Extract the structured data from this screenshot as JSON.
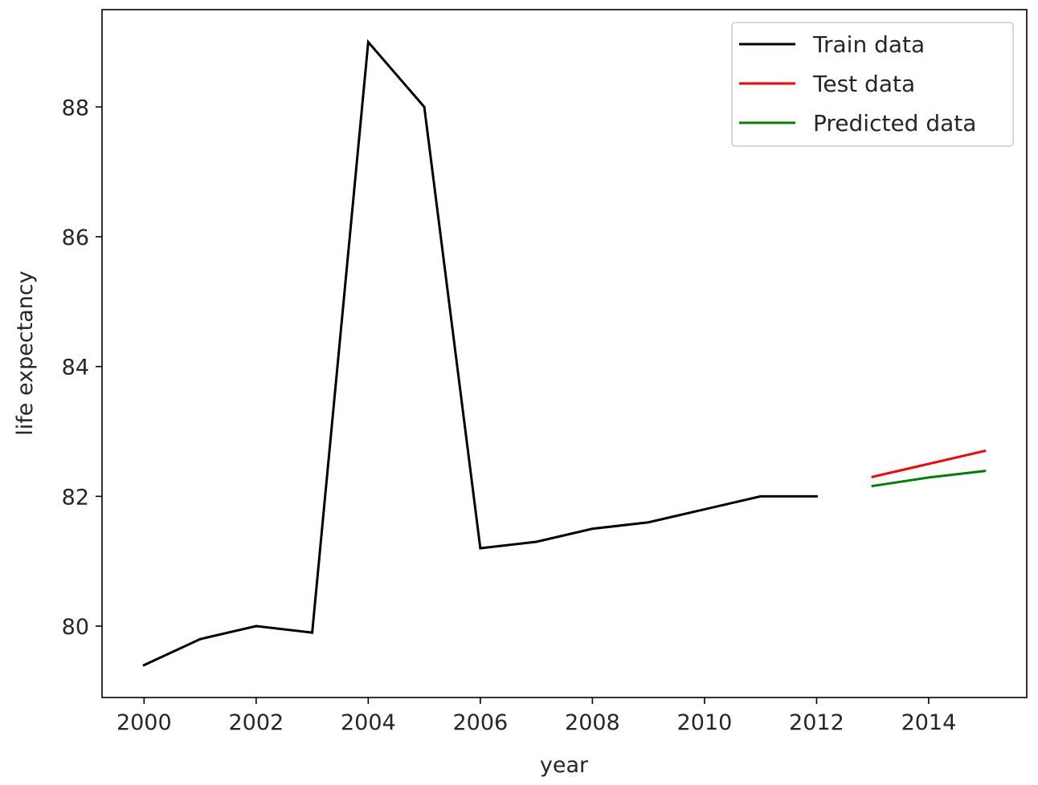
{
  "chart_data": {
    "type": "line",
    "title": "",
    "xlabel": "year",
    "ylabel": "life expectancy",
    "xlim": [
      1999.25,
      2015.75
    ],
    "ylim": [
      78.9,
      89.5
    ],
    "x_ticks": [
      2000,
      2002,
      2004,
      2006,
      2008,
      2010,
      2012,
      2014
    ],
    "x_tick_labels": [
      "2000",
      "2002",
      "2004",
      "2006",
      "2008",
      "2010",
      "2012",
      "2014"
    ],
    "y_ticks": [
      80,
      82,
      84,
      86,
      88
    ],
    "y_tick_labels": [
      "80",
      "82",
      "84",
      "86",
      "88"
    ],
    "grid": false,
    "legend_position": "top-right",
    "series": [
      {
        "name": "Train data",
        "color": "#000000",
        "x": [
          2000,
          2001,
          2002,
          2003,
          2004,
          2005,
          2006,
          2007,
          2008,
          2009,
          2010,
          2011,
          2012
        ],
        "y": [
          79.4,
          79.8,
          80.0,
          79.9,
          89.0,
          88.0,
          81.2,
          81.3,
          81.5,
          81.6,
          81.8,
          82.0,
          82.0
        ]
      },
      {
        "name": "Test data",
        "color": "#ff0000",
        "x": [
          2013,
          2014,
          2015
        ],
        "y": [
          82.3,
          82.5,
          82.7
        ]
      },
      {
        "name": "Predicted data",
        "color": "#008000",
        "x": [
          2013,
          2014,
          2015
        ],
        "y": [
          82.16,
          82.29,
          82.39
        ]
      }
    ]
  }
}
